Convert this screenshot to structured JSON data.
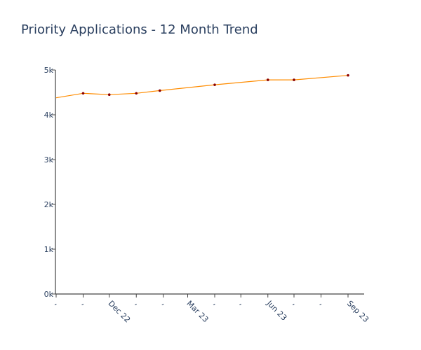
{
  "chart_data": {
    "type": "line",
    "title": "Priority Applications - 12 Month Trend",
    "xlabel": "",
    "ylabel": "",
    "ylim": [
      0,
      5000
    ],
    "y_ticks": [
      {
        "value": 0,
        "label": "0k"
      },
      {
        "value": 1000,
        "label": "1k"
      },
      {
        "value": 2000,
        "label": "2k"
      },
      {
        "value": 3000,
        "label": "3k"
      },
      {
        "value": 4000,
        "label": "4k"
      },
      {
        "value": 5000,
        "label": "5k"
      }
    ],
    "x_ticks": [
      {
        "date": "2022-10-01",
        "label": ","
      },
      {
        "date": "2022-11-01",
        "label": ","
      },
      {
        "date": "2022-12-01",
        "label": "Dec 22"
      },
      {
        "date": "2023-01-01",
        "label": ","
      },
      {
        "date": "2023-02-01",
        "label": ","
      },
      {
        "date": "2023-03-01",
        "label": "Mar 23"
      },
      {
        "date": "2023-04-01",
        "label": ","
      },
      {
        "date": "2023-05-01",
        "label": ","
      },
      {
        "date": "2023-06-01",
        "label": "Jun 23"
      },
      {
        "date": "2023-07-01",
        "label": ","
      },
      {
        "date": "2023-08-01",
        "label": ","
      },
      {
        "date": "2023-09-01",
        "label": "Sep 23"
      }
    ],
    "series": [
      {
        "color": "#ff8c00",
        "marker_color": "#8b0000",
        "points": [
          {
            "x": "2022-10-01",
            "y": 4380
          },
          {
            "x": "2022-11-01",
            "y": 4480
          },
          {
            "x": "2022-12-01",
            "y": 4450
          },
          {
            "x": "2023-01-01",
            "y": 4480
          },
          {
            "x": "2023-01-28",
            "y": 4540
          },
          {
            "x": "2023-04-01",
            "y": 4670
          },
          {
            "x": "2023-06-01",
            "y": 4780
          },
          {
            "x": "2023-07-01",
            "y": 4780
          },
          {
            "x": "2023-09-01",
            "y": 4880
          }
        ]
      }
    ],
    "grid": false,
    "axis_color": "#444444"
  }
}
